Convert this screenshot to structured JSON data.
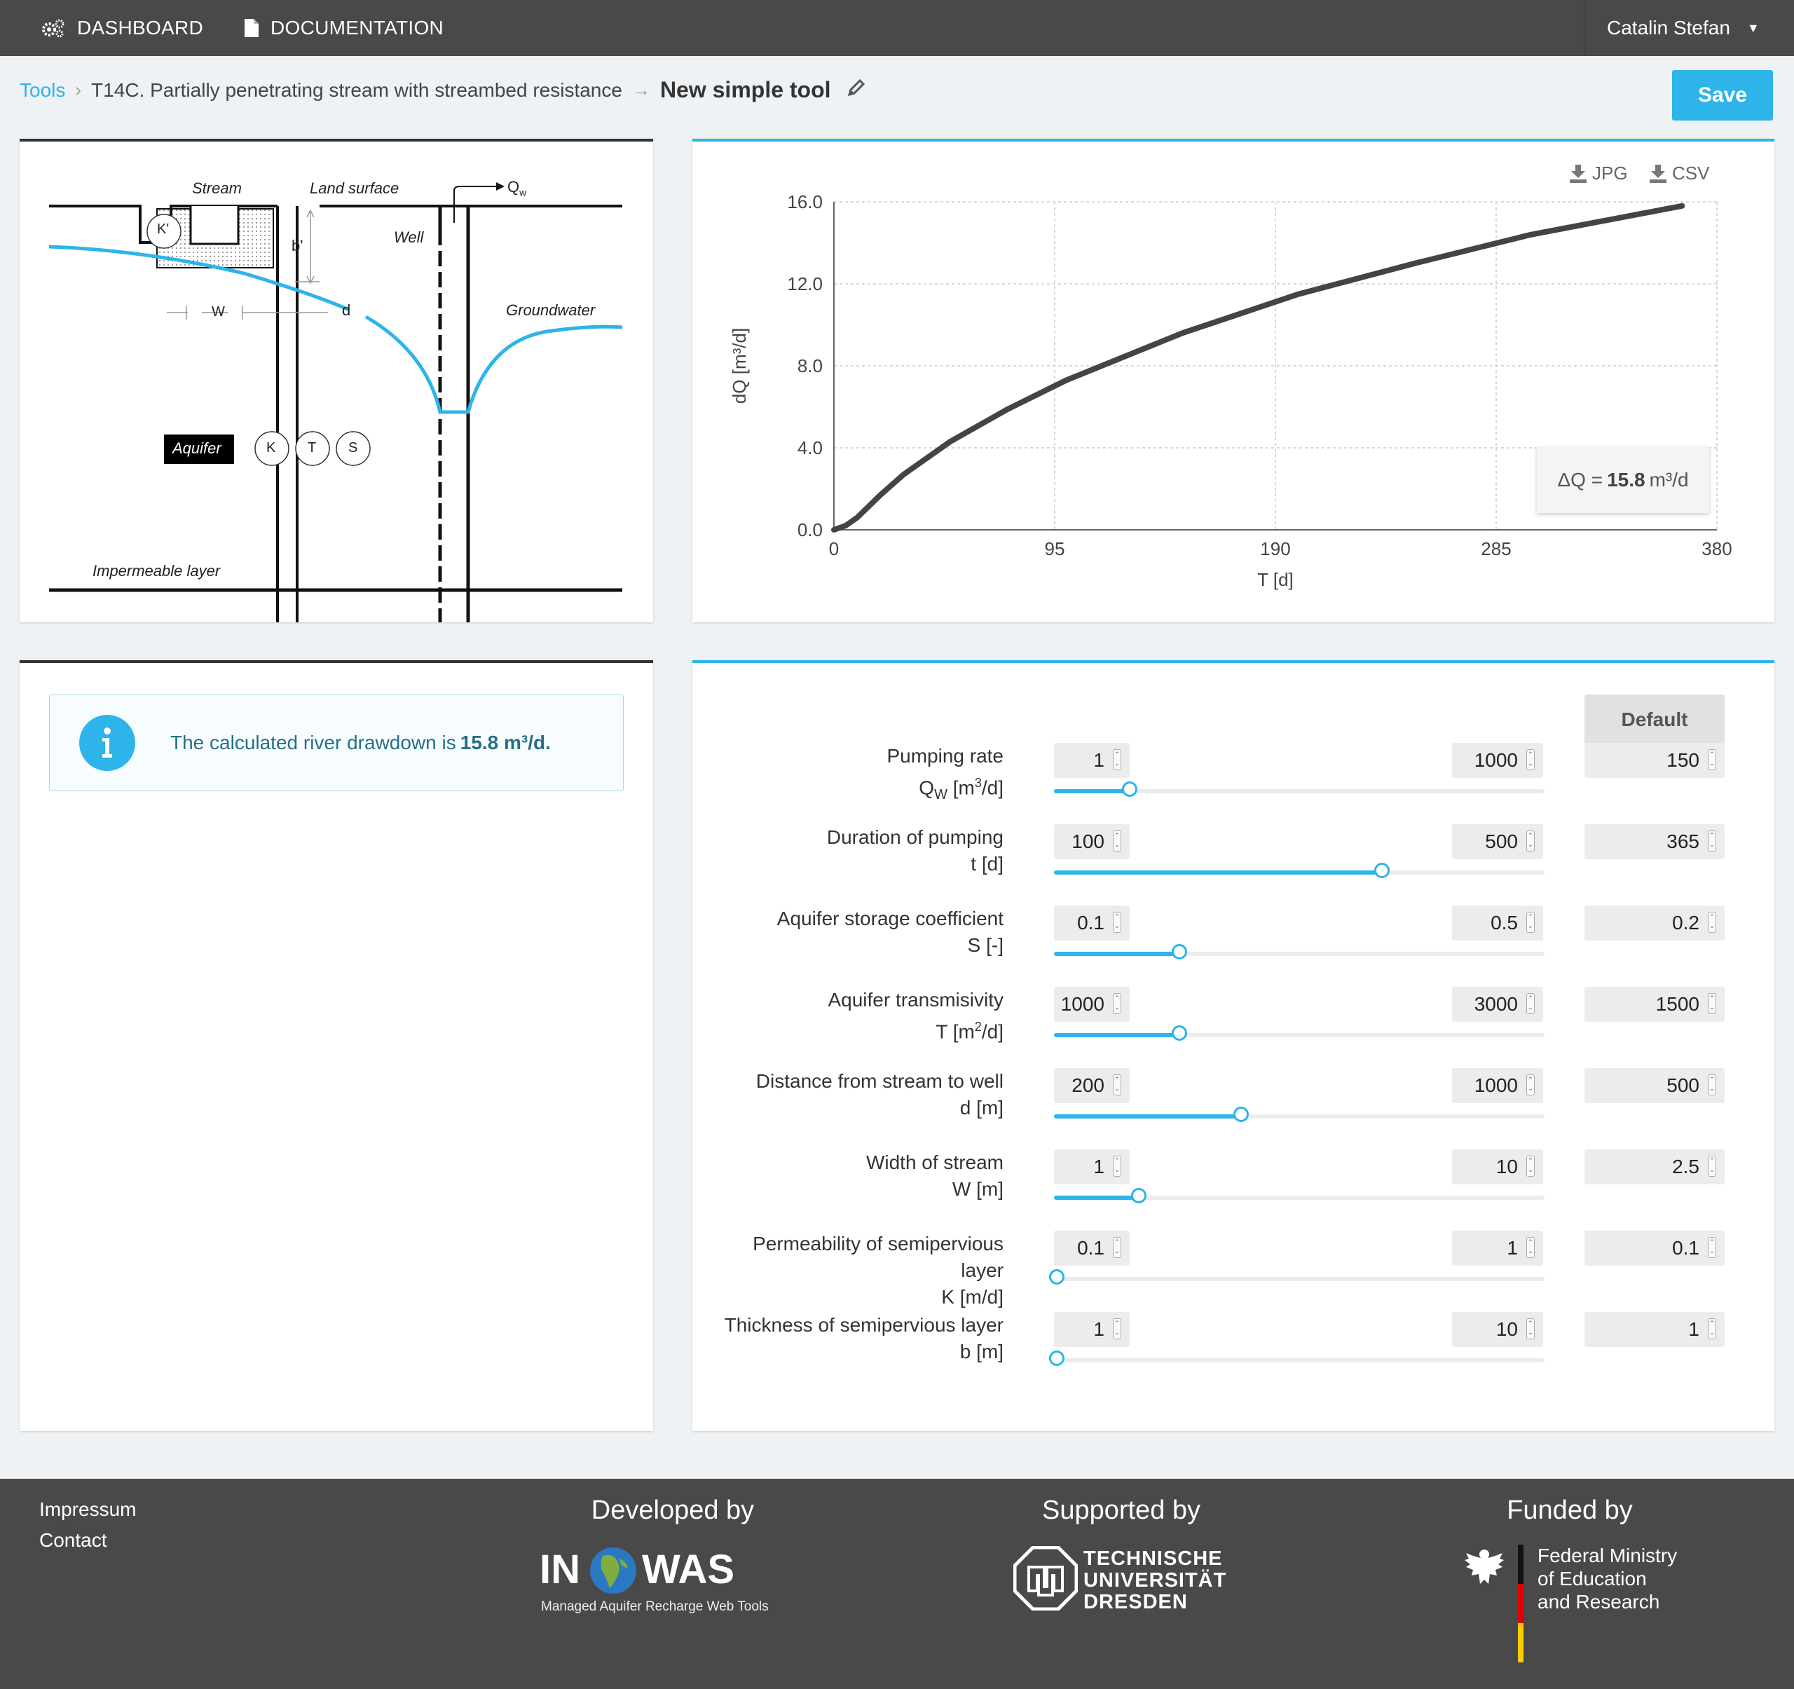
{
  "nav": {
    "dashboard_label": "DASHBOARD",
    "documentation_label": "DOCUMENTATION",
    "user_name": "Catalin Stefan"
  },
  "breadcrumb": {
    "tools": "Tools",
    "tool_name": "T14C. Partially penetrating stream with streambed resistance",
    "current": "New simple tool"
  },
  "save_label": "Save",
  "diagram": {
    "stream": "Stream",
    "land_surface": "Land surface",
    "qw": "Q",
    "qw_sub": "w",
    "well": "Well",
    "groundwater": "Groundwater",
    "k_prime": "K'",
    "b_prime": "b'",
    "w": "W",
    "d": "d",
    "aquifer": "Aquifer",
    "k": "K",
    "t": "T",
    "s": "S",
    "impermeable": "Impermeable layer"
  },
  "chart": {
    "jpg_label": "JPG",
    "csv_label": "CSV",
    "delta_prefix": "ΔQ =",
    "delta_value": "15.8",
    "delta_unit": "m³/d"
  },
  "chart_data": {
    "type": "line",
    "xlabel": "T [d]",
    "ylabel": "dQ [m³/d]",
    "xlim": [
      0,
      380
    ],
    "ylim": [
      0,
      16
    ],
    "xticks": [
      "0",
      "95",
      "190",
      "285",
      "380"
    ],
    "yticks": [
      "0.0",
      "4.0",
      "8.0",
      "12.0",
      "16.0"
    ],
    "grid": true,
    "series": [
      {
        "x": [
          0,
          5,
          10,
          20,
          30,
          50,
          75,
          100,
          150,
          200,
          250,
          300,
          365
        ],
        "y": [
          0,
          0.2,
          0.6,
          1.7,
          2.7,
          4.3,
          5.9,
          7.3,
          9.6,
          11.5,
          13.0,
          14.4,
          15.8
        ]
      }
    ]
  },
  "result": {
    "message": "The calculated river drawdown is",
    "value": "15.8 m³/d."
  },
  "params": {
    "default_label": "Default",
    "items": [
      {
        "label": "Pumping rate",
        "unit_pre": "Q",
        "unit_sub": "W",
        "unit_post": " [m",
        "unit_sup": "3",
        "unit_end": "/d]",
        "min": "1",
        "max": "1000",
        "value": "150",
        "fraction": 0.149
      },
      {
        "label": "Duration of pumping",
        "unit": "t [d]",
        "min": "100",
        "max": "500",
        "value": "365",
        "fraction": 0.6625
      },
      {
        "label": "Aquifer storage coefficient",
        "unit": "S [-]",
        "min": "0.1",
        "max": "0.5",
        "value": "0.2",
        "fraction": 0.25
      },
      {
        "label": "Aquifer transmisivity",
        "unit_pre": "T [m",
        "unit_sup": "2",
        "unit_end": "/d]",
        "min": "1000",
        "max": "3000",
        "value": "1500",
        "fraction": 0.25
      },
      {
        "label": "Distance from stream to well",
        "unit": "d [m]",
        "min": "200",
        "max": "1000",
        "value": "500",
        "fraction": 0.375
      },
      {
        "label": "Width of stream",
        "unit": "W [m]",
        "min": "1",
        "max": "10",
        "value": "2.5",
        "fraction": 0.167
      },
      {
        "label_l1": "Permeability of semipervious",
        "label_l2": "layer",
        "unit": "K [m/d]",
        "min": "0.1",
        "max": "1",
        "value": "0.1",
        "fraction": 0
      },
      {
        "label": "Thickness of semipervious layer",
        "unit": "b [m]",
        "min": "1",
        "max": "10",
        "value": "1",
        "fraction": 0
      }
    ]
  },
  "footer": {
    "impressum": "Impressum",
    "contact": "Contact",
    "developed_by": "Developed by",
    "supported_by": "Supported by",
    "funded_by": "Funded by",
    "inowas_in": "IN",
    "inowas_was": "WAS",
    "inowas_sub": "Managed Aquifer Recharge Web Tools",
    "tud_l1": "TECHNISCHE",
    "tud_l2": "UNIVERSITÄT",
    "tud_l3": "DRESDEN",
    "bmbf_l1": "Federal Ministry",
    "bmbf_l2": "of Education",
    "bmbf_l3": "and Research"
  }
}
